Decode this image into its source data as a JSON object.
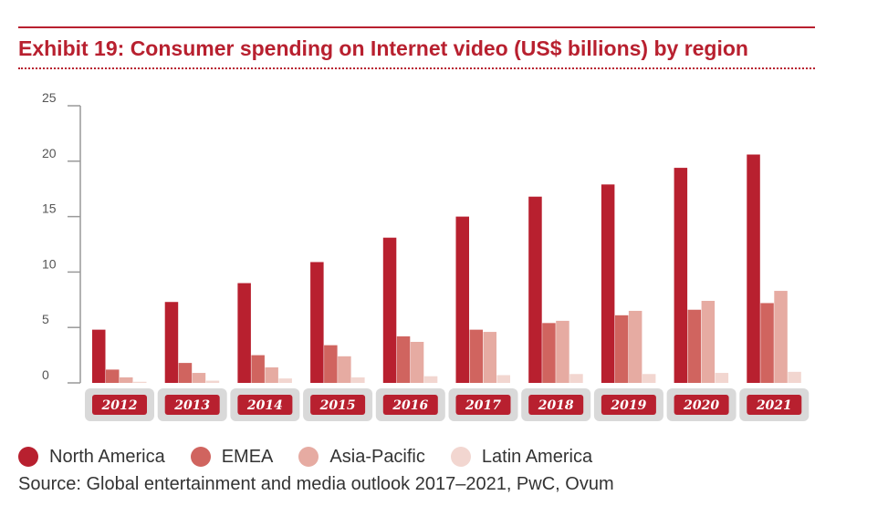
{
  "title": "Exhibit 19: Consumer spending on Internet video (US$ billions) by region",
  "source": "Source: Global entertainment and media outlook 2017–2021, PwC, Ovum",
  "colors": {
    "accent": "#b8202f",
    "north_america": "#b8202f",
    "emea": "#d0645f",
    "asia_pacific": "#e6aba2",
    "latin_america": "#f2d6d0",
    "label_tab_bg": "#b8202f",
    "label_tab_frame": "#d9d9d9"
  },
  "chart_data": {
    "type": "bar",
    "categories": [
      "2012",
      "2013",
      "2014",
      "2015",
      "2016",
      "2017",
      "2018",
      "2019",
      "2020",
      "2021"
    ],
    "series": [
      {
        "name": "North America",
        "color": "#b8202f",
        "values": [
          4.8,
          7.3,
          9.0,
          10.9,
          13.1,
          15.0,
          16.8,
          17.9,
          19.4,
          20.6
        ]
      },
      {
        "name": "EMEA",
        "color": "#d0645f",
        "values": [
          1.2,
          1.8,
          2.5,
          3.4,
          4.2,
          4.8,
          5.4,
          6.1,
          6.6,
          7.2
        ]
      },
      {
        "name": "Asia-Pacific",
        "color": "#e6aba2",
        "values": [
          0.5,
          0.9,
          1.4,
          2.4,
          3.7,
          4.6,
          5.6,
          6.5,
          7.4,
          8.3
        ]
      },
      {
        "name": "Latin America",
        "color": "#f2d6d0",
        "values": [
          0.1,
          0.2,
          0.4,
          0.5,
          0.6,
          0.7,
          0.8,
          0.8,
          0.9,
          1.0
        ]
      }
    ],
    "yticks": [
      "0",
      "5",
      "10",
      "15",
      "20",
      "25"
    ],
    "ylim": [
      0,
      25
    ],
    "legend_position": "bottom-left",
    "grid": false
  }
}
